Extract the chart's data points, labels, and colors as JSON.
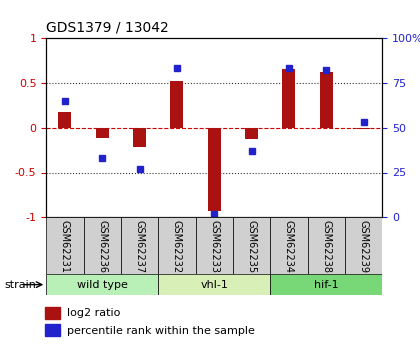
{
  "title": "GDS1379 / 13042",
  "samples": [
    "GSM62231",
    "GSM62236",
    "GSM62237",
    "GSM62232",
    "GSM62233",
    "GSM62235",
    "GSM62234",
    "GSM62238",
    "GSM62239"
  ],
  "log2_ratio": [
    0.18,
    -0.12,
    -0.22,
    0.52,
    -0.93,
    -0.13,
    0.65,
    0.62,
    -0.02
  ],
  "percentile_rank": [
    65,
    33,
    27,
    83,
    2,
    37,
    83,
    82,
    53
  ],
  "groups": [
    {
      "label": "wild type",
      "start": 0,
      "end": 3,
      "color": "#b8f0b8"
    },
    {
      "label": "vhl-1",
      "start": 3,
      "end": 6,
      "color": "#d8f0b8"
    },
    {
      "label": "hif-1",
      "start": 6,
      "end": 9,
      "color": "#78d878"
    }
  ],
  "bar_color": "#aa1111",
  "dot_color": "#2222cc",
  "ylim_left": [
    -1,
    1
  ],
  "ylim_right": [
    0,
    100
  ],
  "yticks_left": [
    -1,
    -0.5,
    0,
    0.5,
    1
  ],
  "yticks_right": [
    0,
    25,
    50,
    75,
    100
  ],
  "hline_color": "#cc0000",
  "grid_color": "#333333",
  "background_color": "#ffffff",
  "legend_red_label": "log2 ratio",
  "legend_blue_label": "percentile rank within the sample"
}
